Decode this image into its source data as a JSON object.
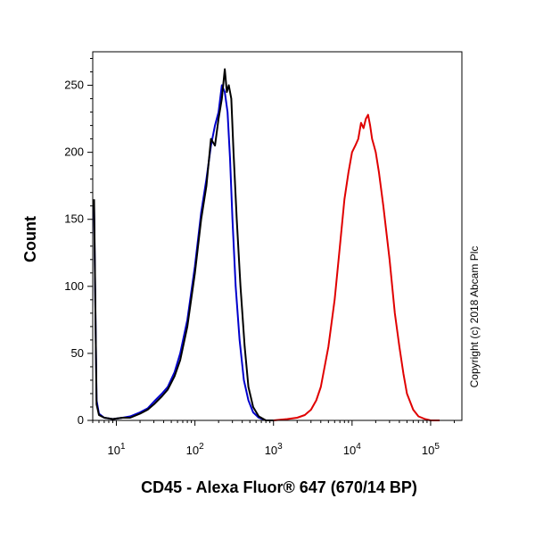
{
  "chart_data": {
    "type": "line",
    "title": "",
    "xlabel": "CD45 - Alexa Fluor® 647 (670/14 BP)",
    "ylabel": "Count",
    "x_scale": "log",
    "xlim": [
      5,
      250000
    ],
    "ylim": [
      0,
      275
    ],
    "x_ticks": [
      {
        "value": 10,
        "base": "10",
        "exp": "1"
      },
      {
        "value": 100,
        "base": "10",
        "exp": "2"
      },
      {
        "value": 1000,
        "base": "10",
        "exp": "3"
      },
      {
        "value": 10000,
        "base": "10",
        "exp": "4"
      },
      {
        "value": 100000,
        "base": "10",
        "exp": "5"
      }
    ],
    "y_ticks": [
      0,
      50,
      100,
      150,
      200,
      250
    ],
    "grid": false,
    "legend": "none",
    "series": [
      {
        "color": "#0000cc",
        "points": [
          [
            5.2,
            160
          ],
          [
            5.6,
            15
          ],
          [
            6,
            5
          ],
          [
            7,
            2
          ],
          [
            9,
            1
          ],
          [
            12,
            2
          ],
          [
            15,
            3
          ],
          [
            20,
            6
          ],
          [
            25,
            9
          ],
          [
            30,
            14
          ],
          [
            38,
            20
          ],
          [
            45,
            25
          ],
          [
            55,
            36
          ],
          [
            65,
            50
          ],
          [
            80,
            75
          ],
          [
            100,
            115
          ],
          [
            120,
            155
          ],
          [
            140,
            180
          ],
          [
            160,
            205
          ],
          [
            180,
            220
          ],
          [
            200,
            230
          ],
          [
            220,
            250
          ],
          [
            240,
            245
          ],
          [
            260,
            230
          ],
          [
            280,
            195
          ],
          [
            300,
            150
          ],
          [
            330,
            100
          ],
          [
            370,
            60
          ],
          [
            420,
            30
          ],
          [
            480,
            15
          ],
          [
            550,
            6
          ],
          [
            650,
            2
          ],
          [
            800,
            0
          ],
          [
            1000,
            0
          ]
        ]
      },
      {
        "color": "#000000",
        "points": [
          [
            5.2,
            165
          ],
          [
            5.6,
            12
          ],
          [
            6,
            4
          ],
          [
            7,
            2
          ],
          [
            9,
            1
          ],
          [
            12,
            2
          ],
          [
            15,
            2
          ],
          [
            20,
            5
          ],
          [
            25,
            8
          ],
          [
            30,
            12
          ],
          [
            38,
            18
          ],
          [
            45,
            23
          ],
          [
            55,
            33
          ],
          [
            65,
            45
          ],
          [
            80,
            70
          ],
          [
            100,
            110
          ],
          [
            120,
            150
          ],
          [
            140,
            175
          ],
          [
            160,
            210
          ],
          [
            180,
            205
          ],
          [
            200,
            225
          ],
          [
            220,
            240
          ],
          [
            240,
            262
          ],
          [
            255,
            245
          ],
          [
            270,
            250
          ],
          [
            290,
            240
          ],
          [
            310,
            200
          ],
          [
            340,
            150
          ],
          [
            380,
            100
          ],
          [
            430,
            55
          ],
          [
            480,
            25
          ],
          [
            550,
            10
          ],
          [
            650,
            3
          ],
          [
            800,
            0
          ],
          [
            1000,
            0
          ]
        ]
      },
      {
        "color": "#e00000",
        "points": [
          [
            1000,
            0
          ],
          [
            1500,
            1
          ],
          [
            2000,
            2
          ],
          [
            2500,
            4
          ],
          [
            3000,
            8
          ],
          [
            3500,
            15
          ],
          [
            4000,
            25
          ],
          [
            5000,
            55
          ],
          [
            6000,
            90
          ],
          [
            7000,
            130
          ],
          [
            8000,
            165
          ],
          [
            9000,
            185
          ],
          [
            10000,
            200
          ],
          [
            11000,
            205
          ],
          [
            12000,
            210
          ],
          [
            13000,
            222
          ],
          [
            14000,
            218
          ],
          [
            15000,
            225
          ],
          [
            16000,
            228
          ],
          [
            17000,
            220
          ],
          [
            18000,
            210
          ],
          [
            19000,
            205
          ],
          [
            20000,
            200
          ],
          [
            22000,
            185
          ],
          [
            25000,
            160
          ],
          [
            30000,
            120
          ],
          [
            35000,
            80
          ],
          [
            40000,
            55
          ],
          [
            45000,
            35
          ],
          [
            50000,
            20
          ],
          [
            60000,
            8
          ],
          [
            70000,
            3
          ],
          [
            85000,
            1
          ],
          [
            100000,
            0
          ],
          [
            130000,
            0
          ]
        ]
      }
    ],
    "annotation": "Copyright (c) 2018 Abcam Plc"
  }
}
